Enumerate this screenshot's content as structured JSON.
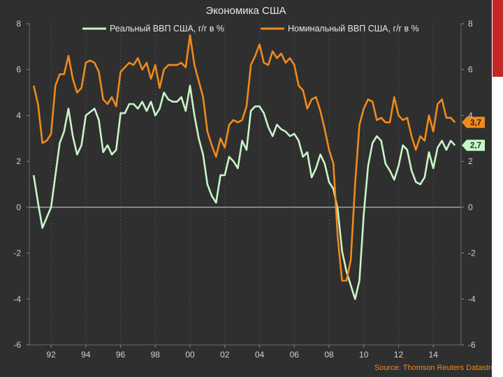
{
  "chart_data": {
    "type": "line",
    "title": "Экономика США",
    "source": "Source: Thomson Reuters Datastream",
    "x_tick_labels": [
      "92",
      "94",
      "96",
      "98",
      "00",
      "02",
      "04",
      "06",
      "08",
      "10",
      "12",
      "14"
    ],
    "x_tick_years": [
      1992,
      1994,
      1996,
      1998,
      2000,
      2002,
      2004,
      2006,
      2008,
      2010,
      2012,
      2014
    ],
    "xlim": [
      1990.75,
      2015.6
    ],
    "ylim": [
      -6,
      8
    ],
    "y_ticks": [
      -6,
      -4,
      -2,
      0,
      2,
      4,
      6,
      8
    ],
    "y_tick_labels": [
      "-6",
      "-4",
      "-2",
      "0",
      "2",
      "4",
      "6",
      "8"
    ],
    "y_right_ticks": [
      -6,
      -4,
      -2,
      0,
      2,
      4,
      6,
      8
    ],
    "y_right_tick_labels": [
      "-6",
      "-4",
      "-2",
      "0",
      "2",
      "4",
      "6",
      "8"
    ],
    "zero_line": true,
    "vertical_grid": true,
    "legend_position": "top",
    "series": [
      {
        "name": "Реальный ВВП США, г/г в %",
        "color": "#c8f5c8",
        "last_value_label": "2,7",
        "x": [
          1991.0,
          1991.25,
          1991.5,
          1992.0,
          1992.5,
          1992.75,
          1993.0,
          1993.25,
          1993.5,
          1993.75,
          1994.0,
          1994.5,
          1994.75,
          1995.0,
          1995.25,
          1995.5,
          1995.75,
          1996.0,
          1996.25,
          1996.5,
          1996.75,
          1997.0,
          1997.25,
          1997.5,
          1997.75,
          1998.0,
          1998.25,
          1998.5,
          1998.75,
          1999.0,
          1999.25,
          1999.5,
          1999.75,
          2000.0,
          2000.25,
          2000.5,
          2000.75,
          2001.0,
          2001.25,
          2001.5,
          2001.75,
          2002.0,
          2002.25,
          2002.5,
          2002.75,
          2003.0,
          2003.25,
          2003.5,
          2003.75,
          2004.0,
          2004.25,
          2004.5,
          2004.75,
          2005.0,
          2005.25,
          2005.5,
          2005.75,
          2006.0,
          2006.25,
          2006.5,
          2006.75,
          2007.0,
          2007.25,
          2007.5,
          2007.75,
          2008.0,
          2008.25,
          2008.5,
          2008.75,
          2009.0,
          2009.25,
          2009.5,
          2009.75,
          2010.0,
          2010.25,
          2010.5,
          2010.75,
          2011.0,
          2011.25,
          2011.5,
          2011.75,
          2012.0,
          2012.25,
          2012.5,
          2012.75,
          2013.0,
          2013.25,
          2013.5,
          2013.75,
          2014.0,
          2014.25,
          2014.5,
          2014.75,
          2015.0,
          2015.25
        ],
        "values": [
          1.4,
          0.2,
          -0.9,
          0.0,
          2.8,
          3.3,
          4.3,
          3.1,
          2.3,
          2.7,
          4.0,
          4.3,
          3.8,
          2.4,
          2.7,
          2.3,
          2.5,
          4.1,
          4.1,
          4.5,
          4.5,
          4.3,
          4.6,
          4.2,
          4.6,
          4.0,
          4.3,
          5.0,
          4.7,
          4.6,
          4.6,
          4.8,
          4.2,
          5.3,
          4.0,
          3.0,
          2.3,
          1.0,
          0.5,
          0.2,
          1.4,
          1.4,
          2.2,
          2.0,
          1.7,
          2.9,
          2.5,
          4.2,
          4.4,
          4.4,
          4.1,
          3.5,
          3.1,
          3.6,
          3.4,
          3.3,
          3.1,
          3.2,
          2.9,
          2.2,
          2.4,
          1.3,
          1.7,
          2.3,
          1.9,
          1.1,
          0.8,
          -0.1,
          -1.9,
          -2.8,
          -3.4,
          -4.0,
          -3.2,
          -0.3,
          1.8,
          2.8,
          3.1,
          2.9,
          1.9,
          1.6,
          1.2,
          1.8,
          2.7,
          2.5,
          1.6,
          1.1,
          1.0,
          1.3,
          2.4,
          1.7,
          2.6,
          2.9,
          2.5,
          2.9,
          2.7
        ]
      },
      {
        "name": "Номинальный ВВП США, г/г в %",
        "color": "#f08a1c",
        "last_value_label": "3,7",
        "x": [
          1991.0,
          1991.25,
          1991.5,
          1991.75,
          1992.0,
          1992.25,
          1992.5,
          1992.75,
          1993.0,
          1993.25,
          1993.5,
          1993.75,
          1994.0,
          1994.25,
          1994.5,
          1994.75,
          1995.0,
          1995.25,
          1995.5,
          1995.75,
          1996.0,
          1996.25,
          1996.5,
          1996.75,
          1997.0,
          1997.25,
          1997.5,
          1997.75,
          1998.0,
          1998.25,
          1998.5,
          1998.75,
          1999.0,
          1999.25,
          1999.5,
          1999.75,
          2000.0,
          2000.25,
          2000.5,
          2000.75,
          2001.0,
          2001.25,
          2001.5,
          2001.75,
          2002.0,
          2002.25,
          2002.5,
          2002.75,
          2003.0,
          2003.25,
          2003.5,
          2003.75,
          2004.0,
          2004.25,
          2004.5,
          2004.75,
          2005.0,
          2005.25,
          2005.5,
          2005.75,
          2006.0,
          2006.25,
          2006.5,
          2006.75,
          2007.0,
          2007.25,
          2007.5,
          2007.75,
          2008.0,
          2008.25,
          2008.5,
          2008.75,
          2009.0,
          2009.25,
          2009.5,
          2009.75,
          2010.0,
          2010.25,
          2010.5,
          2010.75,
          2011.0,
          2011.25,
          2011.5,
          2011.75,
          2012.0,
          2012.25,
          2012.5,
          2012.75,
          2013.0,
          2013.25,
          2013.5,
          2013.75,
          2014.0,
          2014.25,
          2014.5,
          2014.75,
          2015.0,
          2015.25
        ],
        "values": [
          5.3,
          4.5,
          2.8,
          2.9,
          3.2,
          5.3,
          5.8,
          5.8,
          6.6,
          5.6,
          5.0,
          5.2,
          6.3,
          6.4,
          6.3,
          5.9,
          4.7,
          4.5,
          4.8,
          4.4,
          5.9,
          6.1,
          6.3,
          6.2,
          6.5,
          6.0,
          6.3,
          5.6,
          6.2,
          5.2,
          6.0,
          6.2,
          6.2,
          6.2,
          6.3,
          6.1,
          7.5,
          6.2,
          5.5,
          4.8,
          3.3,
          2.7,
          2.2,
          3.0,
          2.6,
          3.6,
          3.8,
          3.7,
          3.8,
          4.4,
          6.2,
          6.6,
          7.1,
          6.3,
          6.2,
          6.8,
          6.5,
          6.7,
          6.3,
          6.5,
          6.2,
          5.3,
          5.1,
          4.3,
          4.7,
          4.8,
          4.2,
          3.4,
          2.5,
          1.9,
          -1.3,
          -3.2,
          -3.2,
          -2.3,
          1.0,
          3.6,
          4.3,
          4.7,
          4.6,
          3.8,
          3.9,
          3.7,
          3.7,
          4.8,
          4.0,
          3.8,
          3.9,
          3.1,
          2.5,
          3.1,
          2.9,
          4.0,
          3.3,
          4.5,
          4.7,
          3.9,
          3.9,
          3.7
        ]
      }
    ]
  }
}
